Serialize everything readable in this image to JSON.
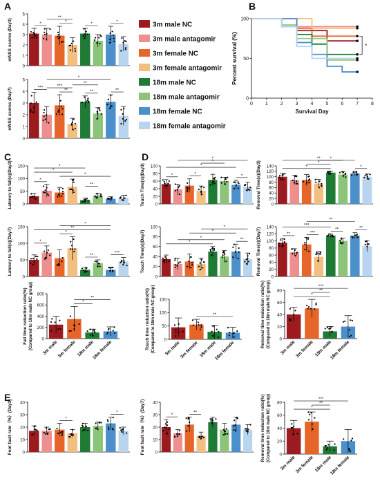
{
  "colors": {
    "3m male NC": "#9b1b1f",
    "3m male antagomir": "#ee8f8f",
    "3m female NC": "#e8652a",
    "3m female antagomir": "#f3bf80",
    "18m male NC": "#1f7a35",
    "18m male antagomir": "#8cc47a",
    "18m female NC": "#4b8fcb",
    "18m female antagomir": "#b9d4ef"
  },
  "legend": {
    "items": [
      "3m male NC",
      "3m male antagomir",
      "3m female NC",
      "3m female antagomir",
      "18m male NC",
      "18m male antagomir",
      "18m female NC",
      "18m female antagomir"
    ]
  },
  "panel_letters": [
    "A",
    "B",
    "C",
    "D",
    "E"
  ],
  "sig_marks": [
    "*",
    "**",
    "***"
  ],
  "chart_data": [
    {
      "id": "A1",
      "type": "bar",
      "ylabel": "mNSS scores (Day3)",
      "ylim": [
        0,
        5
      ],
      "ticks": [
        0,
        1,
        2,
        3,
        4,
        5
      ],
      "groups": [
        "3m male NC",
        "3m male antagomir",
        "3m female NC",
        "3m female antagomir",
        "18m male NC",
        "18m male antagomir",
        "18m female NC",
        "18m female antagomir"
      ],
      "values": [
        3.1,
        3.0,
        2.9,
        2.0,
        3.1,
        2.4,
        3.0,
        2.1
      ],
      "errors": [
        0.5,
        0.6,
        0.9,
        0.7,
        0.5,
        0.6,
        0.8,
        0.7
      ],
      "sig": [
        [
          0,
          1,
          "*"
        ],
        [
          2,
          3,
          "*"
        ],
        [
          1,
          3,
          "**"
        ],
        [
          4,
          5,
          "*"
        ],
        [
          6,
          7,
          "*"
        ]
      ]
    },
    {
      "id": "A2",
      "type": "bar",
      "ylabel": "mNSS scores (Day7)",
      "ylim": [
        0,
        5
      ],
      "ticks": [
        0,
        1,
        2,
        3,
        4,
        5
      ],
      "groups": [
        "3m male NC",
        "3m male antagomir",
        "3m female NC",
        "3m female antagomir",
        "18m male NC",
        "18m male antagomir",
        "18m female NC",
        "18m female antagomir"
      ],
      "values": [
        3.0,
        2.0,
        2.8,
        1.2,
        3.1,
        2.1,
        3.1,
        1.9
      ],
      "errors": [
        0.9,
        0.7,
        0.9,
        0.5,
        0.5,
        0.5,
        0.6,
        0.8
      ],
      "sig": [
        [
          0,
          1,
          "***"
        ],
        [
          2,
          3,
          "**"
        ],
        [
          1,
          3,
          "***"
        ],
        [
          3,
          5,
          "**"
        ],
        [
          4,
          5,
          "**"
        ],
        [
          6,
          7,
          "**"
        ],
        [
          1,
          6,
          "*"
        ]
      ]
    },
    {
      "id": "B",
      "type": "line",
      "title": "",
      "ylabel": "Percent survival (%)",
      "xlabel": "Survival Day",
      "xlim": [
        0,
        8
      ],
      "ylim": [
        0,
        100
      ],
      "xticks": [
        0,
        1,
        2,
        3,
        4,
        5,
        6,
        7,
        8
      ],
      "yticks": [
        0,
        50,
        100
      ],
      "yticklabels": [
        "0",
        "50",
        "100"
      ],
      "series": [
        {
          "name": "3m male NC",
          "points": [
            [
              0,
              100
            ],
            [
              3,
              100
            ],
            [
              3,
              85
            ],
            [
              5,
              85
            ],
            [
              5,
              72
            ],
            [
              7,
              72
            ]
          ]
        },
        {
          "name": "3m male antagomir",
          "points": [
            [
              0,
              100
            ],
            [
              3,
              100
            ],
            [
              3,
              90
            ],
            [
              7,
              90
            ]
          ]
        },
        {
          "name": "3m female NC",
          "points": [
            [
              0,
              100
            ],
            [
              3,
              100
            ],
            [
              3,
              88
            ],
            [
              4,
              88
            ],
            [
              4,
              78
            ],
            [
              7,
              78
            ]
          ]
        },
        {
          "name": "3m female antagomir",
          "points": [
            [
              0,
              100
            ],
            [
              4,
              100
            ],
            [
              4,
              88
            ],
            [
              7,
              88
            ]
          ]
        },
        {
          "name": "18m male NC",
          "points": [
            [
              0,
              100
            ],
            [
              2,
              100
            ],
            [
              2,
              90
            ],
            [
              3,
              90
            ],
            [
              3,
              80
            ],
            [
              4,
              80
            ],
            [
              4,
              68
            ],
            [
              5,
              68
            ],
            [
              5,
              55
            ],
            [
              7,
              55
            ]
          ]
        },
        {
          "name": "18m male antagomir",
          "points": [
            [
              0,
              100
            ],
            [
              2,
              100
            ],
            [
              2,
              92
            ],
            [
              3,
              92
            ],
            [
              3,
              75
            ],
            [
              5,
              75
            ],
            [
              5,
              48
            ],
            [
              7,
              48
            ]
          ]
        },
        {
          "name": "18m female NC",
          "points": [
            [
              0,
              100
            ],
            [
              3,
              100
            ],
            [
              3,
              70
            ],
            [
              4,
              70
            ],
            [
              4,
              55
            ],
            [
              5,
              55
            ],
            [
              5,
              40
            ],
            [
              6,
              40
            ],
            [
              6,
              33
            ],
            [
              7,
              33
            ]
          ]
        },
        {
          "name": "18m female antagomir",
          "points": [
            [
              0,
              100
            ],
            [
              2,
              100
            ],
            [
              2,
              90
            ],
            [
              3,
              90
            ],
            [
              3,
              65
            ],
            [
              4,
              65
            ],
            [
              4,
              50
            ],
            [
              7,
              50
            ]
          ]
        }
      ],
      "sig": "*"
    },
    {
      "id": "C1",
      "type": "bar",
      "ylabel": "Latency to fall(s)(Day3)",
      "ylim": [
        0,
        150
      ],
      "ticks": [
        0,
        50,
        100,
        150
      ],
      "groups": [
        "3m male NC",
        "3m male antagomir",
        "3m female NC",
        "3m female antagomir",
        "18m male NC",
        "18m male antagomir",
        "18m female NC",
        "18m female antagomir"
      ],
      "values": [
        30,
        52,
        45,
        68,
        15,
        32,
        20,
        24
      ],
      "errors": [
        12,
        25,
        20,
        30,
        8,
        10,
        8,
        10
      ],
      "sig": [
        [
          0,
          1,
          "*"
        ],
        [
          0,
          3,
          "*"
        ],
        [
          0,
          4,
          "*"
        ],
        [
          2,
          6,
          "*"
        ],
        [
          4,
          5,
          "**"
        ]
      ]
    },
    {
      "id": "C2",
      "type": "bar",
      "ylabel": "Latency to fall(s)(Day7)",
      "ylim": [
        0,
        150
      ],
      "ticks": [
        0,
        50,
        100,
        150
      ],
      "groups": [
        "3m male NC",
        "3m male antagomir",
        "3m female NC",
        "3m female antagomir",
        "18m male NC",
        "18m male antagomir",
        "18m female NC",
        "18m female antagomir"
      ],
      "values": [
        50,
        72,
        55,
        85,
        20,
        40,
        20,
        45
      ],
      "errors": [
        15,
        20,
        25,
        35,
        8,
        10,
        8,
        12
      ],
      "sig": [
        [
          0,
          1,
          "*"
        ],
        [
          2,
          3,
          "*"
        ],
        [
          0,
          6,
          "**"
        ],
        [
          2,
          6,
          "*"
        ],
        [
          4,
          5,
          "**"
        ],
        [
          6,
          7,
          "***"
        ]
      ]
    },
    {
      "id": "C3",
      "type": "bar",
      "ylabel": "Fall time reduction ratio(%)",
      "ylabel2": "(Compared to 18m male NC group)",
      "ylim": [
        0,
        800
      ],
      "ticks": [
        0,
        200,
        400,
        600,
        800
      ],
      "groups": [
        "3m male",
        "3m female",
        "18m male",
        "18m female"
      ],
      "colors": [
        "3m male NC",
        "3m female NC",
        "18m male NC",
        "18m female NC"
      ],
      "values": [
        250,
        350,
        110,
        130
      ],
      "errors": [
        150,
        220,
        60,
        80
      ],
      "sig": [
        [
          1,
          2,
          "*"
        ],
        [
          1,
          3,
          "**"
        ]
      ]
    },
    {
      "id": "D1",
      "type": "bar",
      "ylabel": "Touch Time(s)(Day3)",
      "ylim": [
        0,
        100
      ],
      "ticks": [
        0,
        20,
        40,
        60,
        80,
        100
      ],
      "groups": [
        "3m male NC",
        "3m male antagomir",
        "3m female NC",
        "3m female antagomir",
        "18m male NC",
        "18m male antagomir",
        "18m female NC",
        "18m female antagomir"
      ],
      "values": [
        52,
        38,
        48,
        35,
        63,
        60,
        50,
        45
      ],
      "errors": [
        12,
        14,
        18,
        12,
        15,
        10,
        12,
        12
      ],
      "sig": [
        [
          0,
          1,
          "*"
        ],
        [
          2,
          3,
          "*"
        ],
        [
          0,
          6,
          "*"
        ],
        [
          3,
          5,
          "*"
        ],
        [
          1,
          7,
          "*"
        ],
        [
          6,
          7,
          "*"
        ]
      ]
    },
    {
      "id": "D2",
      "type": "bar",
      "ylabel": "Touch Time(s)(Day7)",
      "ylim": [
        0,
        100
      ],
      "ticks": [
        0,
        20,
        40,
        60,
        80,
        100
      ],
      "groups": [
        "3m male NC",
        "3m male antagomir",
        "3m female NC",
        "3m female antagomir",
        "18m male NC",
        "18m male antagomir",
        "18m female NC",
        "18m female antagomir"
      ],
      "values": [
        35,
        25,
        30,
        25,
        50,
        40,
        50,
        35
      ],
      "errors": [
        8,
        12,
        15,
        12,
        10,
        12,
        15,
        12
      ],
      "sig": [
        [
          0,
          4,
          "*"
        ],
        [
          1,
          5,
          "*"
        ],
        [
          2,
          6,
          "*"
        ],
        [
          3,
          7,
          "*"
        ],
        [
          6,
          7,
          "**"
        ]
      ]
    },
    {
      "id": "D3",
      "type": "bar",
      "ylabel": "Touch time reduction ratio(%)",
      "ylabel2": "(Compared to 18m male NC group)",
      "ylim": [
        0,
        150
      ],
      "ticks": [
        0,
        50,
        100,
        150
      ],
      "groups": [
        "3m male",
        "3m female",
        "18m male",
        "18m female"
      ],
      "colors": [
        "3m male NC",
        "3m female NC",
        "18m male NC",
        "18m female NC"
      ],
      "values": [
        45,
        55,
        28,
        25
      ],
      "errors": [
        35,
        20,
        25,
        20
      ],
      "sig": [
        [
          1,
          3,
          "**"
        ]
      ]
    },
    {
      "id": "D4",
      "type": "bar",
      "ylabel": "Removal Time(s)(Day3)",
      "ylim": [
        0,
        140
      ],
      "ticks": [
        0,
        20,
        40,
        60,
        80,
        100,
        120,
        140
      ],
      "groups": [
        "3m male NC",
        "3m male antagomir",
        "3m female NC",
        "3m female antagomir",
        "18m male NC",
        "18m male antagomir",
        "18m female NC",
        "18m female antagomir"
      ],
      "values": [
        100,
        88,
        88,
        75,
        115,
        108,
        112,
        100
      ],
      "errors": [
        12,
        18,
        20,
        15,
        5,
        10,
        8,
        10
      ],
      "sig": [
        [
          0,
          4,
          "*"
        ],
        [
          2,
          4,
          "*"
        ],
        [
          3,
          5,
          "*"
        ],
        [
          0,
          6,
          "**"
        ],
        [
          6,
          7,
          "*"
        ]
      ]
    },
    {
      "id": "D5",
      "type": "bar",
      "ylabel": "Removal Time(s)(Day7)",
      "ylim": [
        0,
        140
      ],
      "ticks": [
        0,
        20,
        40,
        60,
        80,
        100,
        120,
        140
      ],
      "groups": [
        "3m male NC",
        "3m male antagomir",
        "3m female NC",
        "3m female antagomir",
        "18m male NC",
        "18m male antagomir",
        "18m female NC",
        "18m female antagomir"
      ],
      "values": [
        95,
        68,
        90,
        55,
        115,
        100,
        115,
        85
      ],
      "errors": [
        12,
        10,
        20,
        15,
        5,
        8,
        8,
        15
      ],
      "sig": [
        [
          0,
          1,
          "**"
        ],
        [
          2,
          3,
          "***"
        ],
        [
          0,
          4,
          "***"
        ],
        [
          2,
          6,
          "**"
        ],
        [
          4,
          5,
          "**"
        ],
        [
          6,
          7,
          "**"
        ]
      ]
    },
    {
      "id": "D6",
      "type": "bar",
      "ylabel": "Removal time reduction ratio(%)",
      "ylabel2": "(Compared to 18m male NC group)",
      "ylim": [
        0,
        80
      ],
      "ticks": [
        0,
        20,
        40,
        60,
        80
      ],
      "groups": [
        "3m male",
        "3m female",
        "18m male",
        "18m female"
      ],
      "colors": [
        "3m male NC",
        "3m female NC",
        "18m male NC",
        "18m female NC"
      ],
      "values": [
        40,
        50,
        12,
        20
      ],
      "errors": [
        12,
        15,
        8,
        18
      ],
      "sig": [
        [
          0,
          2,
          "*"
        ],
        [
          1,
          2,
          "**"
        ],
        [
          0,
          3,
          "***"
        ]
      ]
    },
    {
      "id": "E1",
      "type": "bar",
      "ylabel": "Foot fault rate（%）(Day3)",
      "ylim": [
        0,
        40
      ],
      "ticks": [
        0,
        10,
        20,
        30,
        40
      ],
      "groups": [
        "3m male NC",
        "3m male antagomir",
        "3m female NC",
        "3m female antagomir",
        "18m male NC",
        "18m male antagomir",
        "18m female NC",
        "18m female antagomir"
      ],
      "values": [
        17,
        17,
        18,
        15,
        20,
        21,
        23,
        17
      ],
      "errors": [
        4,
        3,
        5,
        3,
        3,
        3,
        5,
        3
      ],
      "sig": [
        [
          2,
          3,
          "*"
        ],
        [
          6,
          7,
          "*"
        ]
      ]
    },
    {
      "id": "E2",
      "type": "bar",
      "ylabel": "Foot fault rate（%）(Day7)",
      "ylim": [
        0,
        40
      ],
      "ticks": [
        0,
        10,
        20,
        30,
        40
      ],
      "groups": [
        "3m male NC",
        "3m male antagomir",
        "3m female NC",
        "3m female antagomir",
        "18m male NC",
        "18m male antagomir",
        "18m female NC",
        "18m female antagomir"
      ],
      "values": [
        20,
        15,
        22,
        13,
        24,
        18,
        22,
        18
      ],
      "errors": [
        6,
        3,
        6,
        3,
        4,
        5,
        6,
        4
      ],
      "sig": [
        [
          0,
          1,
          "*"
        ],
        [
          2,
          3,
          "**"
        ]
      ]
    },
    {
      "id": "E3",
      "type": "bar",
      "ylabel": "Removal time reduction ratio(%)",
      "ylabel2": "(Compared to 18m male NC group)",
      "ylim": [
        0,
        80
      ],
      "ticks": [
        0,
        20,
        40,
        60,
        80
      ],
      "groups": [
        "3m male",
        "3m female",
        "18m male",
        "18m female"
      ],
      "colors": [
        "3m male NC",
        "3m female NC",
        "18m male NC",
        "18m female NC"
      ],
      "values": [
        40,
        50,
        12,
        20
      ],
      "errors": [
        12,
        15,
        8,
        18
      ],
      "sig": [
        [
          0,
          2,
          "*"
        ],
        [
          1,
          2,
          "**"
        ],
        [
          0,
          3,
          "***"
        ]
      ]
    }
  ]
}
